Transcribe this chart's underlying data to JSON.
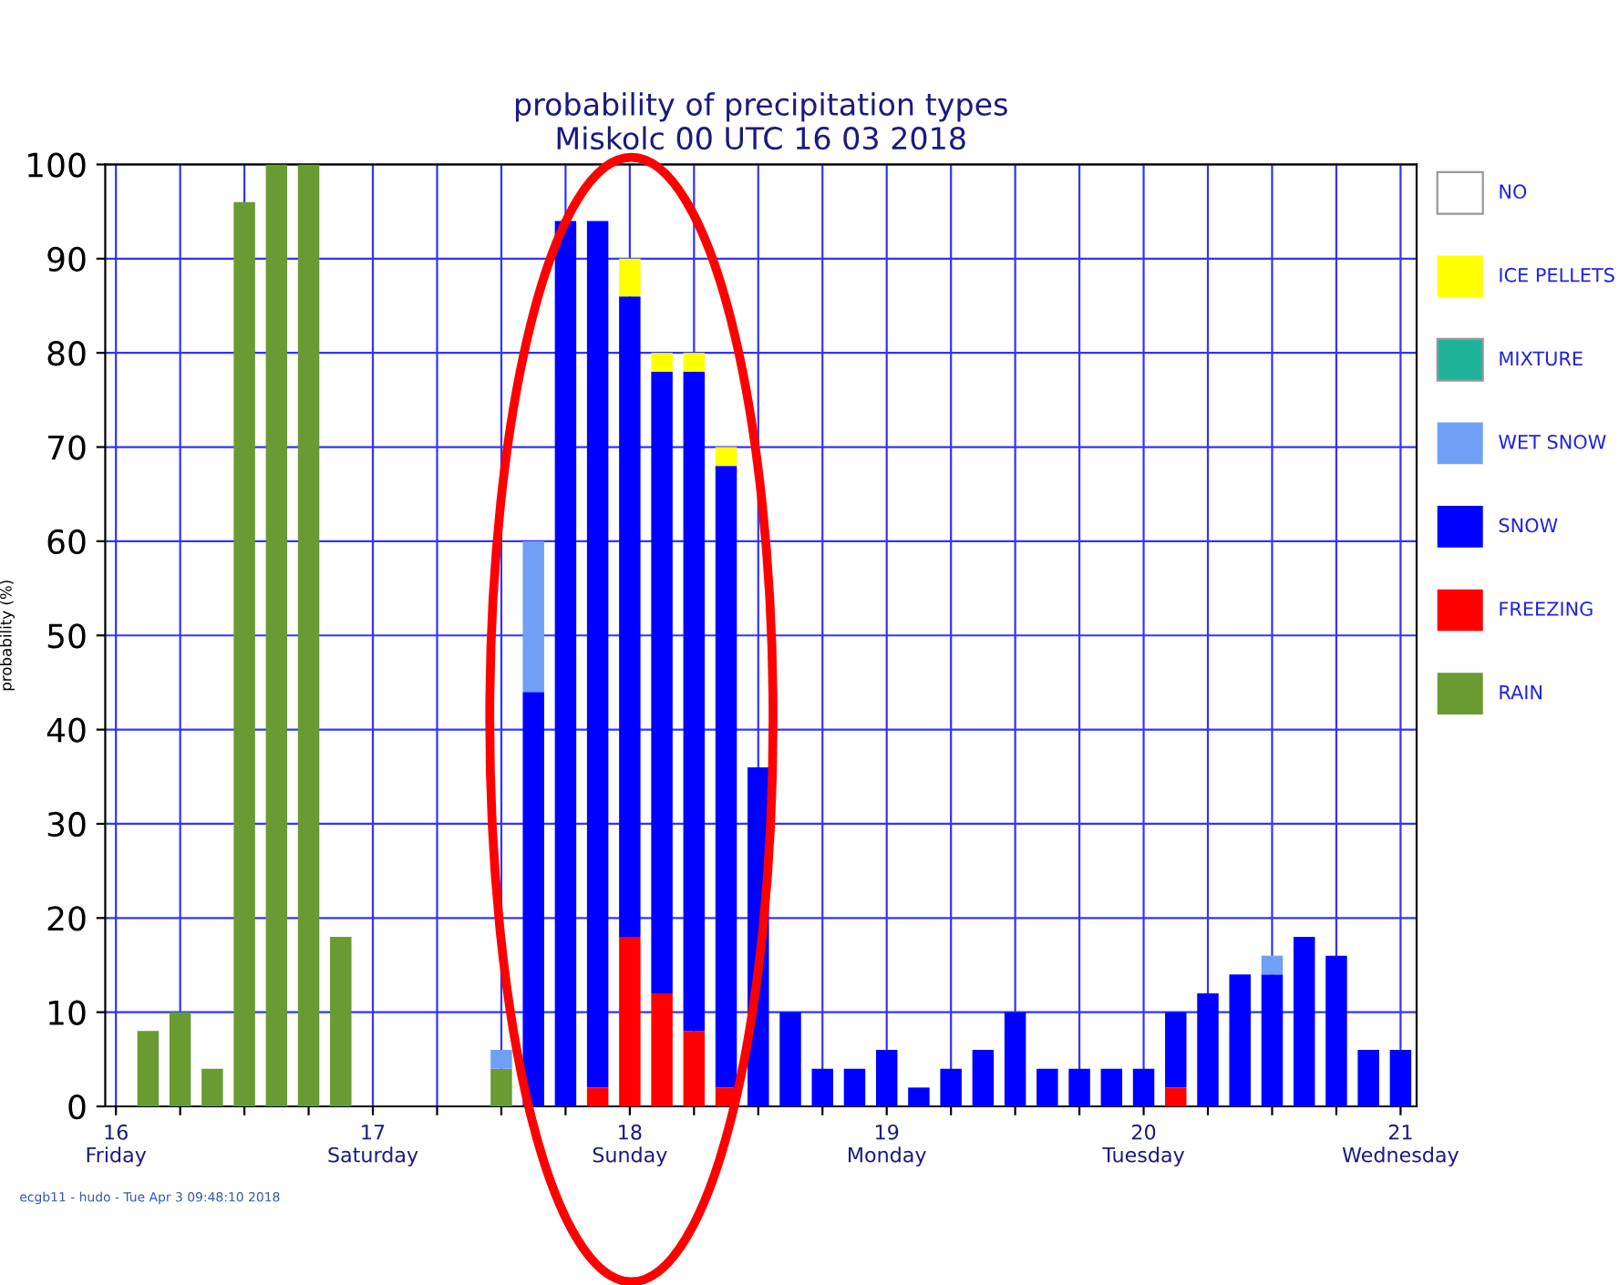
{
  "chart_data": {
    "type": "bar",
    "stacked": true,
    "title": "probability of precipitation types\nMiskolc 00 UTC 16 03 2018",
    "ylabel": "probability (%)",
    "x": [
      "2018-03-16T03:00",
      "2018-03-16T06:00",
      "2018-03-16T09:00",
      "2018-03-16T12:00",
      "2018-03-16T15:00",
      "2018-03-16T18:00",
      "2018-03-16T21:00",
      "2018-03-17T12:00",
      "2018-03-17T15:00",
      "2018-03-17T18:00",
      "2018-03-17T21:00",
      "2018-03-18T00:00",
      "2018-03-18T03:00",
      "2018-03-18T06:00",
      "2018-03-18T09:00",
      "2018-03-18T12:00",
      "2018-03-18T15:00",
      "2018-03-18T18:00",
      "2018-03-18T21:00",
      "2018-03-19T00:00",
      "2018-03-19T03:00",
      "2018-03-19T06:00",
      "2018-03-19T09:00",
      "2018-03-19T12:00",
      "2018-03-19T15:00",
      "2018-03-19T18:00",
      "2018-03-19T21:00",
      "2018-03-20T00:00",
      "2018-03-20T03:00",
      "2018-03-20T06:00",
      "2018-03-20T09:00",
      "2018-03-20T12:00",
      "2018-03-20T15:00",
      "2018-03-20T18:00",
      "2018-03-20T21:00",
      "2018-03-21T00:00"
    ],
    "series": [
      {
        "name": "RAIN",
        "color": "#6a9a32",
        "values": [
          8,
          10,
          4,
          96,
          100,
          100,
          18,
          4,
          0,
          0,
          0,
          0,
          0,
          0,
          0,
          0,
          0,
          0,
          0,
          0,
          0,
          0,
          0,
          0,
          0,
          0,
          0,
          0,
          0,
          0,
          0,
          0,
          0,
          0,
          0,
          0
        ]
      },
      {
        "name": "FREEZING",
        "color": "#ff0000",
        "values": [
          0,
          0,
          0,
          0,
          0,
          0,
          0,
          0,
          0,
          0,
          2,
          18,
          12,
          8,
          2,
          0,
          0,
          0,
          0,
          0,
          0,
          0,
          0,
          0,
          0,
          0,
          0,
          0,
          2,
          0,
          0,
          0,
          0,
          0,
          0,
          0
        ]
      },
      {
        "name": "SNOW",
        "color": "#0000ff",
        "values": [
          0,
          0,
          0,
          0,
          0,
          0,
          0,
          0,
          44,
          94,
          92,
          68,
          66,
          70,
          66,
          36,
          10,
          4,
          4,
          6,
          2,
          4,
          6,
          10,
          4,
          4,
          4,
          4,
          8,
          12,
          14,
          14,
          18,
          16,
          6,
          6
        ]
      },
      {
        "name": "WET SNOW",
        "color": "#6fa0f5",
        "values": [
          0,
          0,
          0,
          0,
          0,
          0,
          0,
          2,
          16,
          0,
          0,
          0,
          0,
          0,
          0,
          0,
          0,
          0,
          0,
          0,
          0,
          0,
          0,
          0,
          0,
          0,
          0,
          0,
          0,
          0,
          0,
          2,
          0,
          0,
          0,
          0
        ]
      },
      {
        "name": "MIXTURE",
        "color": "#1fb39a",
        "values": [
          0,
          0,
          0,
          0,
          0,
          0,
          0,
          0,
          0,
          0,
          0,
          0,
          0,
          0,
          0,
          0,
          0,
          0,
          0,
          0,
          0,
          0,
          0,
          0,
          0,
          0,
          0,
          0,
          0,
          0,
          0,
          0,
          0,
          0,
          0,
          0
        ]
      },
      {
        "name": "ICE PELLETS",
        "color": "#ffff00",
        "values": [
          0,
          0,
          0,
          0,
          0,
          0,
          0,
          0,
          0,
          0,
          0,
          4,
          2,
          2,
          2,
          0,
          0,
          0,
          0,
          0,
          0,
          0,
          0,
          0,
          0,
          0,
          0,
          0,
          0,
          0,
          0,
          0,
          0,
          0,
          0,
          0
        ]
      },
      {
        "name": "NO",
        "color": "#ffffff",
        "values": [
          null,
          null,
          null,
          null,
          null,
          null,
          null,
          null,
          null,
          null,
          null,
          null,
          null,
          null,
          null,
          null,
          null,
          null,
          null,
          null,
          null,
          null,
          null,
          null,
          null,
          null,
          null,
          null,
          null,
          null,
          null,
          null,
          null,
          null,
          null,
          null
        ]
      }
    ],
    "xlim": [
      "2018-03-15T23:00",
      "2018-03-21T01:30"
    ],
    "xticks": [
      {
        "value": "2018-03-16T00:00",
        "label": "16\nFriday"
      },
      {
        "value": "2018-03-16T06:00",
        "label": null
      },
      {
        "value": "2018-03-16T12:00",
        "label": null
      },
      {
        "value": "2018-03-16T18:00",
        "label": null
      },
      {
        "value": "2018-03-17T00:00",
        "label": "17\nSaturday"
      },
      {
        "value": "2018-03-17T06:00",
        "label": null
      },
      {
        "value": "2018-03-17T12:00",
        "label": null
      },
      {
        "value": "2018-03-17T18:00",
        "label": null
      },
      {
        "value": "2018-03-18T00:00",
        "label": "18\nSunday"
      },
      {
        "value": "2018-03-18T06:00",
        "label": null
      },
      {
        "value": "2018-03-18T12:00",
        "label": null
      },
      {
        "value": "2018-03-18T18:00",
        "label": null
      },
      {
        "value": "2018-03-19T00:00",
        "label": "19\nMonday"
      },
      {
        "value": "2018-03-19T06:00",
        "label": null
      },
      {
        "value": "2018-03-19T12:00",
        "label": null
      },
      {
        "value": "2018-03-19T18:00",
        "label": null
      },
      {
        "value": "2018-03-20T00:00",
        "label": "20\nTuesday"
      },
      {
        "value": "2018-03-20T06:00",
        "label": null
      },
      {
        "value": "2018-03-20T12:00",
        "label": null
      },
      {
        "value": "2018-03-20T18:00",
        "label": null
      },
      {
        "value": "2018-03-21T00:00",
        "label": "21\nWednesday"
      }
    ],
    "ylim": [
      0,
      100
    ],
    "yticks": [
      0,
      10,
      20,
      30,
      40,
      50,
      60,
      70,
      80,
      90,
      100
    ],
    "grid": true,
    "legend": "right",
    "annotations": [
      "ecgb11 - hudo - Tue Apr 3 09:48:10 2018"
    ]
  }
}
